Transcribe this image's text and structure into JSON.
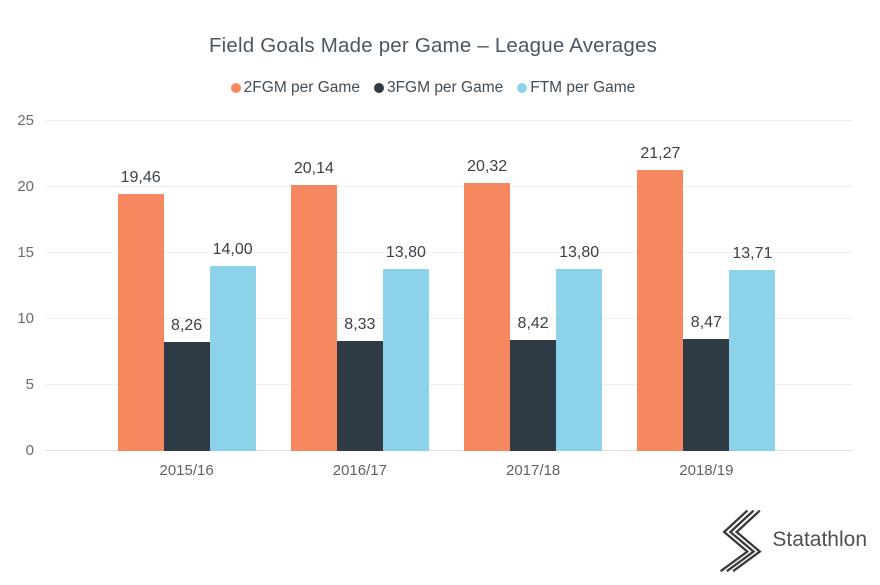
{
  "chart": {
    "title": "Field Goals Made per Game – League Averages"
  },
  "chart_data": {
    "type": "bar",
    "title": "Field Goals Made per Game – League Averages",
    "categories": [
      "2015/16",
      "2016/17",
      "2017/18",
      "2018/19"
    ],
    "series": [
      {
        "name": "2FGM per Game",
        "color": "#F6885F",
        "values": [
          19.46,
          20.14,
          20.32,
          21.27
        ],
        "labels": [
          "19,46",
          "20,14",
          "20,32",
          "21,27"
        ]
      },
      {
        "name": "3FGM per Game",
        "color": "#303C45",
        "values": [
          8.26,
          8.33,
          8.42,
          8.47
        ],
        "labels": [
          "8,26",
          "8,33",
          "8,42",
          "8,47"
        ]
      },
      {
        "name": "FTM per Game",
        "color": "#8CD2E9",
        "values": [
          14.0,
          13.8,
          13.8,
          13.71
        ],
        "labels": [
          "14,00",
          "13,80",
          "13,80",
          "13,71"
        ]
      }
    ],
    "xlabel": "",
    "ylabel": "",
    "ylim": [
      0,
      25
    ],
    "yticks": [
      0,
      5,
      10,
      15,
      20,
      25
    ],
    "grid": true,
    "legend_position": "top",
    "gridline_color": "#efefef",
    "baseline_color": "#e0e0e0"
  },
  "logo": {
    "text": "Statathlon"
  }
}
